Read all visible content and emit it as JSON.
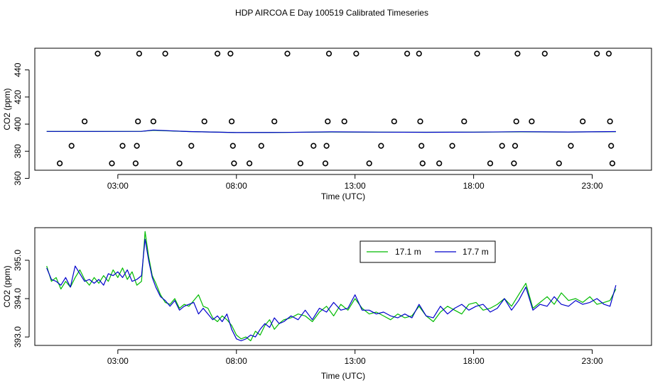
{
  "figure": {
    "title": "HDP AIRCOA E  Day 100519  Calibrated Timeseries"
  },
  "chart_data": [
    {
      "type": "scatter",
      "xlabel": "Time (UTC)",
      "ylabel": "CO2 (ppm)",
      "x_tick_labels": [
        "03:00",
        "08:00",
        "13:00",
        "18:00",
        "23:00"
      ],
      "x_ticks_hours": [
        3,
        8,
        13,
        18,
        23
      ],
      "xlim_hours": [
        -0.5,
        25.5
      ],
      "y_ticks": [
        360,
        380,
        400,
        420,
        440
      ],
      "ylim": [
        366,
        456
      ],
      "grid": false,
      "series": [
        {
          "type": "scatter",
          "marker": "open-circle",
          "color": "#000000",
          "points": [
            [
              0.55,
              371
            ],
            [
              1.05,
              384
            ],
            [
              1.6,
              402
            ],
            [
              2.15,
              452
            ],
            [
              2.75,
              371
            ],
            [
              3.2,
              384
            ],
            [
              3.75,
              371
            ],
            [
              3.8,
              384
            ],
            [
              3.85,
              402
            ],
            [
              3.9,
              452
            ],
            [
              4.5,
              402
            ],
            [
              5.0,
              452
            ],
            [
              5.6,
              371
            ],
            [
              6.1,
              384
            ],
            [
              6.65,
              402
            ],
            [
              7.2,
              452
            ],
            [
              7.75,
              452
            ],
            [
              7.8,
              402
            ],
            [
              7.85,
              384
            ],
            [
              7.9,
              371
            ],
            [
              8.55,
              371
            ],
            [
              9.05,
              384
            ],
            [
              9.6,
              402
            ],
            [
              10.15,
              452
            ],
            [
              10.7,
              371
            ],
            [
              11.25,
              384
            ],
            [
              11.75,
              371
            ],
            [
              11.8,
              384
            ],
            [
              11.85,
              402
            ],
            [
              11.9,
              452
            ],
            [
              12.55,
              402
            ],
            [
              13.05,
              452
            ],
            [
              13.6,
              371
            ],
            [
              14.1,
              384
            ],
            [
              14.65,
              402
            ],
            [
              15.2,
              452
            ],
            [
              15.7,
              452
            ],
            [
              15.75,
              402
            ],
            [
              15.8,
              384
            ],
            [
              15.85,
              371
            ],
            [
              16.55,
              371
            ],
            [
              17.1,
              384
            ],
            [
              17.6,
              402
            ],
            [
              18.15,
              452
            ],
            [
              18.7,
              371
            ],
            [
              19.2,
              384
            ],
            [
              19.7,
              371
            ],
            [
              19.75,
              384
            ],
            [
              19.8,
              402
            ],
            [
              19.85,
              452
            ],
            [
              20.45,
              402
            ],
            [
              21.0,
              452
            ],
            [
              21.6,
              371
            ],
            [
              22.1,
              384
            ],
            [
              22.6,
              402
            ],
            [
              23.2,
              452
            ],
            [
              23.7,
              452
            ],
            [
              23.75,
              402
            ],
            [
              23.8,
              384
            ],
            [
              23.85,
              371
            ]
          ]
        },
        {
          "type": "line",
          "color": "#00bb00",
          "x": [
            0,
            2,
            4,
            4.5,
            6,
            8,
            10,
            12,
            14,
            16,
            18,
            20,
            22,
            24
          ],
          "values": [
            394.6,
            394.6,
            394.7,
            395.4,
            394.5,
            393.8,
            393.9,
            394.2,
            394.1,
            394.0,
            394.1,
            394.3,
            394.2,
            394.4
          ]
        },
        {
          "type": "line",
          "color": "#0000cc",
          "x": [
            0,
            2,
            4,
            4.5,
            6,
            8,
            10,
            12,
            14,
            16,
            18,
            20,
            22,
            24
          ],
          "values": [
            394.6,
            394.6,
            394.7,
            395.6,
            394.5,
            393.8,
            393.9,
            394.3,
            394.1,
            394.0,
            394.1,
            394.4,
            394.2,
            394.5
          ]
        }
      ]
    },
    {
      "type": "line",
      "xlabel": "Time (UTC)",
      "ylabel": "CO2 (ppm)",
      "x_tick_labels": [
        "03:00",
        "08:00",
        "13:00",
        "18:00",
        "23:00"
      ],
      "x_ticks_hours": [
        3,
        8,
        13,
        18,
        23
      ],
      "xlim_hours": [
        -0.5,
        25.5
      ],
      "y_ticks": [
        393.0,
        394.0,
        395.0
      ],
      "y_tick_labels": [
        "393.0",
        "394.0",
        "395.0"
      ],
      "ylim": [
        392.78,
        395.85
      ],
      "grid": false,
      "legend": {
        "position": "top-center",
        "boxed": true
      },
      "series": [
        {
          "name": "17.1 m",
          "color": "#00bb00",
          "x": [
            0.0,
            0.2,
            0.4,
            0.6,
            0.8,
            1.0,
            1.2,
            1.4,
            1.6,
            1.8,
            2.0,
            2.2,
            2.4,
            2.6,
            2.8,
            3.0,
            3.2,
            3.4,
            3.6,
            3.8,
            4.0,
            4.15,
            4.3,
            4.45,
            4.6,
            4.8,
            5.0,
            5.2,
            5.4,
            5.6,
            5.8,
            6.0,
            6.2,
            6.4,
            6.6,
            6.8,
            7.0,
            7.2,
            7.4,
            7.6,
            7.8,
            8.0,
            8.2,
            8.4,
            8.6,
            8.8,
            9.0,
            9.2,
            9.4,
            9.6,
            9.8,
            10.0,
            10.3,
            10.6,
            10.9,
            11.2,
            11.5,
            11.8,
            12.1,
            12.4,
            12.7,
            13.0,
            13.3,
            13.6,
            13.9,
            14.2,
            14.5,
            14.8,
            15.1,
            15.4,
            15.7,
            16.0,
            16.3,
            16.6,
            16.9,
            17.2,
            17.5,
            17.8,
            18.1,
            18.4,
            18.7,
            19.0,
            19.3,
            19.6,
            19.9,
            20.2,
            20.5,
            20.8,
            21.1,
            21.4,
            21.7,
            22.0,
            22.3,
            22.6,
            22.9,
            23.2,
            23.5,
            23.75,
            24.0
          ],
          "values": [
            394.85,
            394.45,
            394.55,
            394.25,
            394.45,
            394.3,
            394.55,
            394.75,
            394.5,
            394.35,
            394.55,
            394.4,
            394.6,
            394.45,
            394.75,
            394.55,
            394.8,
            394.5,
            394.7,
            394.35,
            394.45,
            395.75,
            395.1,
            394.6,
            394.4,
            394.1,
            393.9,
            393.85,
            394.0,
            393.75,
            393.85,
            393.8,
            393.95,
            394.1,
            393.8,
            393.75,
            393.5,
            393.4,
            393.55,
            393.45,
            393.3,
            393.05,
            392.95,
            393.0,
            392.9,
            393.15,
            393.05,
            393.3,
            393.45,
            393.2,
            393.35,
            393.45,
            393.5,
            393.6,
            393.55,
            393.4,
            393.65,
            393.8,
            393.55,
            393.85,
            393.7,
            394.0,
            393.75,
            393.6,
            393.65,
            393.55,
            393.45,
            393.6,
            393.5,
            393.55,
            393.8,
            393.55,
            393.4,
            393.65,
            393.8,
            393.7,
            393.6,
            393.85,
            393.9,
            393.7,
            393.75,
            393.85,
            394.0,
            393.8,
            394.1,
            394.4,
            393.75,
            393.9,
            394.05,
            393.85,
            394.15,
            393.95,
            394.0,
            393.9,
            394.05,
            393.85,
            393.9,
            393.95,
            394.25
          ]
        },
        {
          "name": "17.7 m",
          "color": "#0000cc",
          "x": [
            0.0,
            0.2,
            0.4,
            0.6,
            0.8,
            1.0,
            1.2,
            1.4,
            1.6,
            1.8,
            2.0,
            2.2,
            2.4,
            2.6,
            2.8,
            3.0,
            3.2,
            3.4,
            3.6,
            3.8,
            4.0,
            4.15,
            4.3,
            4.45,
            4.6,
            4.8,
            5.0,
            5.2,
            5.4,
            5.6,
            5.8,
            6.0,
            6.2,
            6.4,
            6.6,
            6.8,
            7.0,
            7.2,
            7.4,
            7.6,
            7.8,
            8.0,
            8.2,
            8.4,
            8.6,
            8.8,
            9.0,
            9.2,
            9.4,
            9.6,
            9.8,
            10.0,
            10.3,
            10.6,
            10.9,
            11.2,
            11.5,
            11.8,
            12.1,
            12.4,
            12.7,
            13.0,
            13.3,
            13.6,
            13.9,
            14.2,
            14.5,
            14.8,
            15.1,
            15.4,
            15.7,
            16.0,
            16.3,
            16.6,
            16.9,
            17.2,
            17.5,
            17.8,
            18.1,
            18.4,
            18.7,
            19.0,
            19.3,
            19.6,
            19.9,
            20.2,
            20.5,
            20.8,
            21.1,
            21.4,
            21.7,
            22.0,
            22.3,
            22.6,
            22.9,
            23.2,
            23.5,
            23.75,
            24.0
          ],
          "values": [
            394.8,
            394.5,
            394.45,
            394.35,
            394.55,
            394.3,
            394.85,
            394.65,
            394.45,
            394.5,
            394.4,
            394.5,
            394.35,
            394.65,
            394.6,
            394.7,
            394.55,
            394.75,
            394.45,
            394.5,
            394.6,
            395.55,
            395.0,
            394.55,
            394.3,
            394.05,
            393.95,
            393.8,
            393.95,
            393.7,
            393.8,
            393.85,
            393.9,
            393.6,
            393.75,
            393.6,
            393.45,
            393.55,
            393.4,
            393.6,
            393.2,
            392.95,
            392.9,
            392.95,
            393.05,
            393.0,
            393.2,
            393.35,
            393.25,
            393.5,
            393.35,
            393.4,
            393.55,
            393.45,
            393.7,
            393.45,
            393.75,
            393.65,
            393.9,
            393.7,
            393.75,
            394.1,
            393.7,
            393.7,
            393.6,
            393.65,
            393.55,
            393.5,
            393.6,
            393.5,
            393.85,
            393.55,
            393.5,
            393.8,
            393.6,
            393.75,
            393.85,
            393.7,
            393.8,
            393.85,
            393.65,
            393.75,
            394.0,
            393.7,
            393.95,
            394.3,
            393.7,
            393.85,
            393.8,
            394.05,
            393.85,
            393.8,
            393.95,
            393.85,
            393.9,
            394.0,
            393.85,
            393.8,
            394.35
          ]
        }
      ]
    }
  ]
}
